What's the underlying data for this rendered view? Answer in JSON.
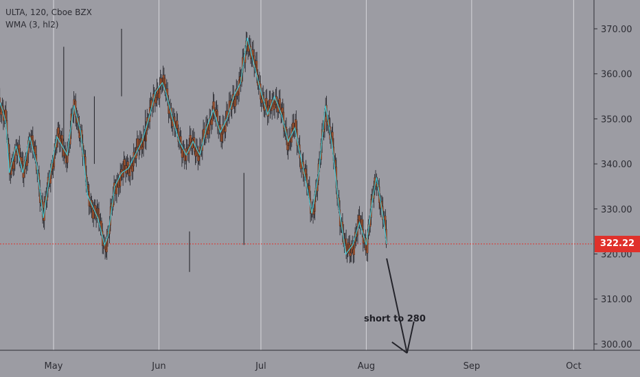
{
  "legend": {
    "symbol_line": "ULTA, 120, Cboe BZX",
    "indicator_line": "WMA (3, hl2)"
  },
  "annotation": {
    "text": "short to 280"
  },
  "last_price": {
    "label": "322.22",
    "value": 322.22,
    "color": "#e0312b"
  },
  "colors": {
    "background": "#9c9ca3",
    "grid": "#d6d6db",
    "candle_body": "#a8562e",
    "candle_wick": "#1c1c22",
    "wma_line": "#3fd7e8",
    "price_line": "#e0312b",
    "annotation_line": "#23232a"
  },
  "chart_data": {
    "type": "candlestick",
    "symbol": "ULTA",
    "interval": "120",
    "exchange": "Cboe BZX",
    "indicator": "WMA (3, hl2)",
    "ylim": [
      298,
      377
    ],
    "xlim_days": [
      0,
      161
    ],
    "y_ticks": [
      300,
      310,
      320,
      330,
      340,
      350,
      360,
      370
    ],
    "y_tick_labels": [
      "300.00",
      "310.00",
      "320.00",
      "330.00",
      "340.00",
      "350.00",
      "360.00",
      "370.00"
    ],
    "x_ticks": [
      {
        "label": "May",
        "day": 30
      },
      {
        "label": "Jun",
        "day": 61
      },
      {
        "label": "Jul",
        "day": 91
      },
      {
        "label": "Aug",
        "day": 122
      },
      {
        "label": "Sep",
        "day": 153
      },
      {
        "label": "Oct",
        "day": 183
      }
    ],
    "price_path": [
      {
        "day": 0,
        "price": 346
      },
      {
        "day": 3,
        "price": 355
      },
      {
        "day": 5,
        "price": 352
      },
      {
        "day": 7,
        "price": 346
      },
      {
        "day": 9,
        "price": 356
      },
      {
        "day": 11,
        "price": 355
      },
      {
        "day": 13,
        "price": 356
      },
      {
        "day": 15,
        "price": 352
      },
      {
        "day": 16,
        "price": 349
      },
      {
        "day": 17,
        "price": 338
      },
      {
        "day": 19,
        "price": 344
      },
      {
        "day": 21,
        "price": 338
      },
      {
        "day": 23,
        "price": 346
      },
      {
        "day": 25,
        "price": 340
      },
      {
        "day": 27,
        "price": 328
      },
      {
        "day": 29,
        "price": 338
      },
      {
        "day": 31,
        "price": 346
      },
      {
        "day": 34,
        "price": 342
      },
      {
        "day": 36,
        "price": 353
      },
      {
        "day": 38,
        "price": 347
      },
      {
        "day": 40,
        "price": 333
      },
      {
        "day": 43,
        "price": 328
      },
      {
        "day": 45,
        "price": 322
      },
      {
        "day": 46,
        "price": 324
      },
      {
        "day": 48,
        "price": 335
      },
      {
        "day": 50,
        "price": 338
      },
      {
        "day": 52,
        "price": 339
      },
      {
        "day": 54,
        "price": 342
      },
      {
        "day": 56,
        "price": 345
      },
      {
        "day": 58,
        "price": 350
      },
      {
        "day": 60,
        "price": 356
      },
      {
        "day": 62,
        "price": 358
      },
      {
        "day": 63,
        "price": 356
      },
      {
        "day": 65,
        "price": 350
      },
      {
        "day": 67,
        "price": 345
      },
      {
        "day": 69,
        "price": 342
      },
      {
        "day": 71,
        "price": 345
      },
      {
        "day": 73,
        "price": 342
      },
      {
        "day": 75,
        "price": 348
      },
      {
        "day": 77,
        "price": 352
      },
      {
        "day": 79,
        "price": 347
      },
      {
        "day": 81,
        "price": 350
      },
      {
        "day": 83,
        "price": 355
      },
      {
        "day": 85,
        "price": 358
      },
      {
        "day": 87,
        "price": 368
      },
      {
        "day": 89,
        "price": 362
      },
      {
        "day": 91,
        "price": 356
      },
      {
        "day": 93,
        "price": 351
      },
      {
        "day": 95,
        "price": 355
      },
      {
        "day": 97,
        "price": 351
      },
      {
        "day": 99,
        "price": 345
      },
      {
        "day": 101,
        "price": 348
      },
      {
        "day": 102,
        "price": 344
      },
      {
        "day": 104,
        "price": 337
      },
      {
        "day": 106,
        "price": 329
      },
      {
        "day": 108,
        "price": 338
      },
      {
        "day": 110,
        "price": 353
      },
      {
        "day": 112,
        "price": 344
      },
      {
        "day": 114,
        "price": 330
      },
      {
        "day": 116,
        "price": 320
      },
      {
        "day": 118,
        "price": 322
      },
      {
        "day": 120,
        "price": 327
      },
      {
        "day": 122,
        "price": 322
      },
      {
        "day": 124,
        "price": 333
      },
      {
        "day": 125,
        "price": 337
      },
      {
        "day": 127,
        "price": 328
      },
      {
        "day": 128,
        "price": 322.22
      }
    ],
    "notable_wicks": [
      {
        "day": 9,
        "low": 305,
        "high": 330
      },
      {
        "day": 33,
        "low": 345,
        "high": 366
      },
      {
        "day": 42,
        "low": 340,
        "high": 355
      },
      {
        "day": 50,
        "low": 355,
        "high": 370
      },
      {
        "day": 57,
        "low": 345,
        "high": 352
      },
      {
        "day": 70,
        "low": 316,
        "high": 325
      },
      {
        "day": 86,
        "low": 322,
        "high": 338
      }
    ],
    "projection": {
      "label": "short to 280",
      "target": 280,
      "points": [
        {
          "day": 128,
          "price": 319
        },
        {
          "day": 134,
          "price": 298
        },
        {
          "day": 136,
          "price": 305
        }
      ]
    },
    "last_price": 322.22
  }
}
